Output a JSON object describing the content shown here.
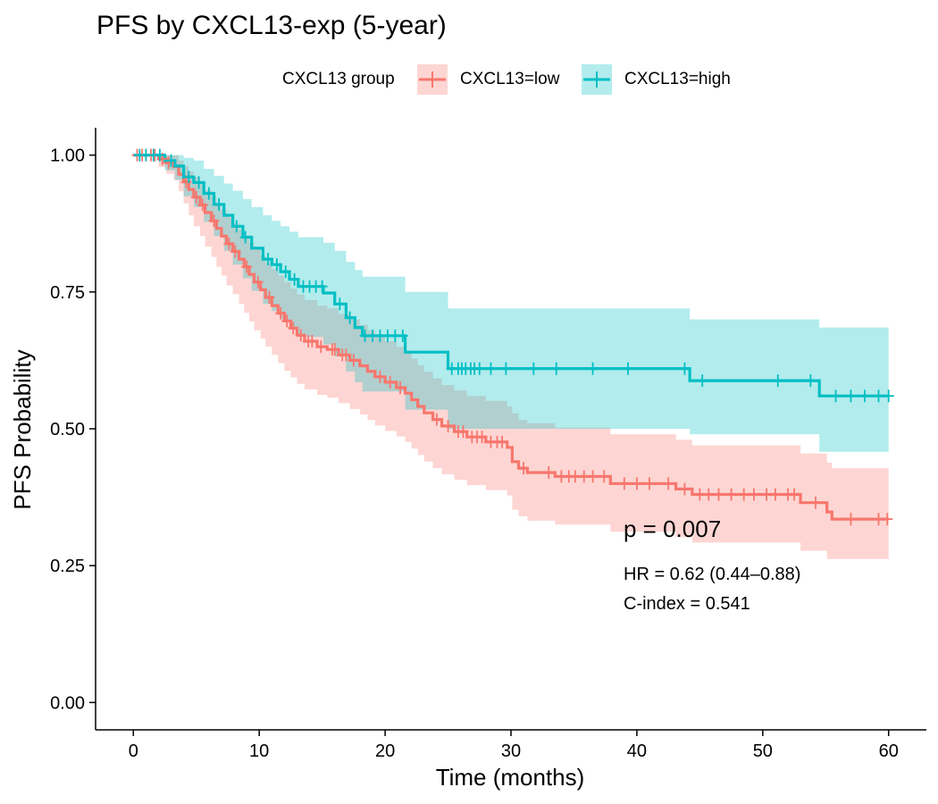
{
  "colors": {
    "low": "#F8766D",
    "high": "#00BFC4",
    "axis": "#000000",
    "background": "#FFFFFF"
  },
  "chart_data": {
    "type": "line",
    "title": "PFS by CXCL13-exp (5-year)",
    "xlabel": "Time (months)",
    "ylabel": "PFS Probability",
    "xlim": [
      -3,
      63
    ],
    "ylim": [
      -0.05,
      1.05
    ],
    "xticks": [
      0,
      10,
      20,
      30,
      40,
      50,
      60
    ],
    "yticks": [
      0.0,
      0.25,
      0.5,
      0.75,
      1.0
    ],
    "ytick_labels": [
      "0.00",
      "0.25",
      "0.50",
      "0.75",
      "1.00"
    ],
    "grid": false,
    "legend_position": "top",
    "legend_title": "CXCL13 group",
    "annotations": {
      "p_value": "p = 0.007",
      "hr": "HR = 0.62 (0.44–0.88)",
      "c_index": "C-index = 0.541"
    },
    "series": [
      {
        "name": "CXCL13=low",
        "color": "#F8766D",
        "steps": [
          [
            0,
            1.0
          ],
          [
            2.0,
            0.993
          ],
          [
            2.6,
            0.986
          ],
          [
            3.2,
            0.979
          ],
          [
            3.6,
            0.965
          ],
          [
            4.0,
            0.951
          ],
          [
            4.4,
            0.937
          ],
          [
            4.8,
            0.923
          ],
          [
            5.3,
            0.909
          ],
          [
            5.7,
            0.895
          ],
          [
            6.2,
            0.88
          ],
          [
            6.6,
            0.866
          ],
          [
            7.0,
            0.852
          ],
          [
            7.4,
            0.838
          ],
          [
            7.9,
            0.824
          ],
          [
            8.4,
            0.81
          ],
          [
            8.8,
            0.796
          ],
          [
            9.2,
            0.782
          ],
          [
            9.6,
            0.768
          ],
          [
            10.1,
            0.754
          ],
          [
            10.5,
            0.74
          ],
          [
            11.0,
            0.725
          ],
          [
            11.5,
            0.711
          ],
          [
            12.0,
            0.697
          ],
          [
            12.5,
            0.684
          ],
          [
            13.0,
            0.671
          ],
          [
            13.6,
            0.66
          ],
          [
            14.6,
            0.65
          ],
          [
            15.4,
            0.645
          ],
          [
            16.3,
            0.635
          ],
          [
            17.2,
            0.625
          ],
          [
            18.0,
            0.615
          ],
          [
            18.6,
            0.605
          ],
          [
            19.2,
            0.595
          ],
          [
            20.0,
            0.585
          ],
          [
            20.9,
            0.575
          ],
          [
            21.6,
            0.565
          ],
          [
            22.1,
            0.553
          ],
          [
            22.6,
            0.541
          ],
          [
            23.1,
            0.529
          ],
          [
            23.8,
            0.517
          ],
          [
            24.5,
            0.505
          ],
          [
            25.5,
            0.495
          ],
          [
            26.5,
            0.485
          ],
          [
            28.0,
            0.476
          ],
          [
            29.7,
            0.466
          ],
          [
            30.1,
            0.44
          ],
          [
            30.6,
            0.428
          ],
          [
            31.3,
            0.42
          ],
          [
            33.5,
            0.413
          ],
          [
            37.9,
            0.4
          ],
          [
            43.1,
            0.39
          ],
          [
            44.4,
            0.38
          ],
          [
            53.0,
            0.365
          ],
          [
            55.1,
            0.348
          ],
          [
            55.5,
            0.335
          ],
          [
            60.0,
            0.335
          ]
        ],
        "ci_lower": [
          [
            0,
            1.0
          ],
          [
            2.0,
            0.978
          ],
          [
            2.6,
            0.966
          ],
          [
            3.2,
            0.954
          ],
          [
            3.6,
            0.934
          ],
          [
            4.0,
            0.912
          ],
          [
            4.4,
            0.89
          ],
          [
            4.8,
            0.87
          ],
          [
            5.3,
            0.852
          ],
          [
            5.7,
            0.833
          ],
          [
            6.2,
            0.814
          ],
          [
            6.6,
            0.796
          ],
          [
            7.0,
            0.78
          ],
          [
            7.4,
            0.762
          ],
          [
            7.9,
            0.746
          ],
          [
            8.4,
            0.728
          ],
          [
            8.8,
            0.712
          ],
          [
            9.2,
            0.696
          ],
          [
            9.6,
            0.68
          ],
          [
            10.1,
            0.665
          ],
          [
            10.5,
            0.65
          ],
          [
            11.0,
            0.635
          ],
          [
            11.5,
            0.62
          ],
          [
            12.0,
            0.606
          ],
          [
            12.5,
            0.594
          ],
          [
            13.0,
            0.582
          ],
          [
            13.6,
            0.572
          ],
          [
            14.6,
            0.562
          ],
          [
            15.4,
            0.557
          ],
          [
            16.3,
            0.547
          ],
          [
            17.2,
            0.536
          ],
          [
            18.0,
            0.526
          ],
          [
            18.6,
            0.516
          ],
          [
            19.2,
            0.506
          ],
          [
            20.0,
            0.496
          ],
          [
            20.9,
            0.486
          ],
          [
            21.6,
            0.476
          ],
          [
            22.1,
            0.464
          ],
          [
            22.6,
            0.452
          ],
          [
            23.1,
            0.44
          ],
          [
            23.8,
            0.428
          ],
          [
            24.5,
            0.417
          ],
          [
            25.5,
            0.407
          ],
          [
            26.5,
            0.397
          ],
          [
            28.0,
            0.388
          ],
          [
            29.7,
            0.378
          ],
          [
            30.1,
            0.352
          ],
          [
            30.6,
            0.34
          ],
          [
            31.3,
            0.332
          ],
          [
            33.5,
            0.325
          ],
          [
            37.9,
            0.312
          ],
          [
            43.1,
            0.302
          ],
          [
            44.4,
            0.292
          ],
          [
            53.0,
            0.277
          ],
          [
            55.1,
            0.262
          ],
          [
            55.5,
            0.262
          ],
          [
            60.0,
            0.262
          ]
        ],
        "ci_upper": [
          [
            0,
            1.0
          ],
          [
            2.0,
            1.0
          ],
          [
            2.6,
            1.0
          ],
          [
            3.2,
            1.0
          ],
          [
            3.6,
            0.99
          ],
          [
            4.0,
            0.98
          ],
          [
            4.4,
            0.97
          ],
          [
            4.8,
            0.96
          ],
          [
            5.3,
            0.948
          ],
          [
            5.7,
            0.936
          ],
          [
            6.2,
            0.924
          ],
          [
            6.6,
            0.912
          ],
          [
            7.0,
            0.9
          ],
          [
            7.4,
            0.888
          ],
          [
            7.9,
            0.876
          ],
          [
            8.4,
            0.864
          ],
          [
            8.8,
            0.852
          ],
          [
            9.2,
            0.84
          ],
          [
            9.6,
            0.828
          ],
          [
            10.1,
            0.816
          ],
          [
            10.5,
            0.804
          ],
          [
            11.0,
            0.792
          ],
          [
            11.5,
            0.78
          ],
          [
            12.0,
            0.768
          ],
          [
            12.5,
            0.756
          ],
          [
            13.0,
            0.745
          ],
          [
            13.6,
            0.735
          ],
          [
            14.6,
            0.725
          ],
          [
            15.4,
            0.72
          ],
          [
            16.3,
            0.71
          ],
          [
            17.2,
            0.7
          ],
          [
            18.0,
            0.69
          ],
          [
            18.6,
            0.68
          ],
          [
            19.2,
            0.67
          ],
          [
            20.0,
            0.66
          ],
          [
            20.9,
            0.65
          ],
          [
            21.6,
            0.64
          ],
          [
            22.1,
            0.628
          ],
          [
            22.6,
            0.616
          ],
          [
            23.1,
            0.604
          ],
          [
            23.8,
            0.592
          ],
          [
            24.5,
            0.58
          ],
          [
            25.5,
            0.57
          ],
          [
            26.5,
            0.56
          ],
          [
            28.0,
            0.551
          ],
          [
            29.7,
            0.541
          ],
          [
            30.1,
            0.528
          ],
          [
            30.6,
            0.516
          ],
          [
            31.3,
            0.51
          ],
          [
            33.5,
            0.502
          ],
          [
            37.9,
            0.49
          ],
          [
            43.1,
            0.48
          ],
          [
            44.4,
            0.47
          ],
          [
            53.0,
            0.455
          ],
          [
            55.1,
            0.438
          ],
          [
            55.5,
            0.428
          ],
          [
            60.0,
            0.428
          ]
        ],
        "censor_times": [
          0.3,
          0.7,
          1.0,
          1.4,
          1.7,
          2.3,
          2.8,
          4.2,
          5.0,
          5.5,
          6.4,
          7.6,
          8.1,
          9.0,
          9.9,
          10.8,
          11.7,
          12.2,
          12.7,
          13.3,
          13.9,
          14.2,
          14.9,
          15.8,
          16.0,
          16.6,
          16.9,
          17.5,
          19.6,
          20.4,
          21.2,
          24.1,
          25.0,
          25.8,
          26.2,
          26.9,
          27.3,
          27.7,
          28.4,
          28.9,
          29.3,
          31.0,
          33.0,
          34.0,
          34.6,
          35.1,
          35.8,
          36.5,
          37.4,
          39.0,
          40.0,
          41.0,
          42.5,
          43.8,
          45.0,
          45.7,
          46.5,
          47.5,
          48.5,
          49.3,
          50.3,
          51.0,
          52.0,
          52.5,
          54.2,
          57.0,
          59.2,
          59.9
        ]
      },
      {
        "name": "CXCL13=high",
        "color": "#00BFC4",
        "steps": [
          [
            0,
            1.0
          ],
          [
            2.5,
            0.99
          ],
          [
            3.3,
            0.98
          ],
          [
            4.0,
            0.96
          ],
          [
            4.8,
            0.95
          ],
          [
            5.6,
            0.93
          ],
          [
            6.4,
            0.91
          ],
          [
            7.2,
            0.89
          ],
          [
            7.9,
            0.87
          ],
          [
            8.7,
            0.85
          ],
          [
            9.4,
            0.83
          ],
          [
            10.3,
            0.81
          ],
          [
            11.0,
            0.8
          ],
          [
            11.7,
            0.787
          ],
          [
            12.4,
            0.773
          ],
          [
            13.1,
            0.76
          ],
          [
            15.1,
            0.748
          ],
          [
            16.0,
            0.728
          ],
          [
            16.9,
            0.703
          ],
          [
            17.6,
            0.685
          ],
          [
            18.2,
            0.67
          ],
          [
            21.6,
            0.64
          ],
          [
            25.0,
            0.61
          ],
          [
            44.2,
            0.588
          ],
          [
            54.5,
            0.56
          ],
          [
            60.0,
            0.56
          ]
        ],
        "ci_lower": [
          [
            0,
            1.0
          ],
          [
            2.5,
            0.972
          ],
          [
            3.3,
            0.955
          ],
          [
            4.0,
            0.925
          ],
          [
            4.8,
            0.905
          ],
          [
            5.6,
            0.878
          ],
          [
            6.4,
            0.852
          ],
          [
            7.2,
            0.825
          ],
          [
            7.9,
            0.8
          ],
          [
            8.7,
            0.775
          ],
          [
            9.4,
            0.752
          ],
          [
            10.3,
            0.728
          ],
          [
            11.0,
            0.715
          ],
          [
            11.7,
            0.7
          ],
          [
            12.4,
            0.684
          ],
          [
            13.1,
            0.668
          ],
          [
            15.1,
            0.654
          ],
          [
            16.0,
            0.632
          ],
          [
            16.9,
            0.605
          ],
          [
            17.6,
            0.585
          ],
          [
            18.2,
            0.568
          ],
          [
            21.6,
            0.535
          ],
          [
            25.0,
            0.5
          ],
          [
            44.2,
            0.49
          ],
          [
            54.5,
            0.458
          ],
          [
            60.0,
            0.458
          ]
        ],
        "ci_upper": [
          [
            0,
            1.0
          ],
          [
            2.5,
            1.0
          ],
          [
            3.3,
            1.0
          ],
          [
            4.0,
            0.995
          ],
          [
            4.8,
            0.99
          ],
          [
            5.6,
            0.975
          ],
          [
            6.4,
            0.962
          ],
          [
            7.2,
            0.948
          ],
          [
            7.9,
            0.935
          ],
          [
            8.7,
            0.92
          ],
          [
            9.4,
            0.905
          ],
          [
            10.3,
            0.89
          ],
          [
            11.0,
            0.88
          ],
          [
            11.7,
            0.87
          ],
          [
            12.4,
            0.86
          ],
          [
            13.1,
            0.85
          ],
          [
            15.1,
            0.84
          ],
          [
            16.0,
            0.825
          ],
          [
            16.9,
            0.805
          ],
          [
            17.6,
            0.79
          ],
          [
            18.2,
            0.778
          ],
          [
            21.6,
            0.75
          ],
          [
            25.0,
            0.72
          ],
          [
            44.2,
            0.7
          ],
          [
            54.5,
            0.685
          ],
          [
            60.0,
            0.685
          ]
        ],
        "censor_times": [
          0.5,
          1.0,
          1.6,
          2.1,
          3.0,
          4.4,
          5.2,
          6.0,
          6.8,
          8.2,
          8.9,
          10.7,
          11.4,
          12.1,
          12.8,
          13.5,
          14.0,
          14.5,
          15.0,
          16.4,
          17.2,
          18.4,
          19.0,
          19.6,
          20.2,
          20.8,
          21.4,
          25.3,
          25.8,
          26.1,
          26.4,
          26.8,
          27.1,
          27.5,
          28.4,
          29.6,
          31.8,
          33.6,
          36.5,
          39.3,
          43.8,
          45.2,
          51.2,
          53.8,
          55.8,
          57.0,
          58.1,
          59.2,
          60.0
        ]
      }
    ]
  }
}
